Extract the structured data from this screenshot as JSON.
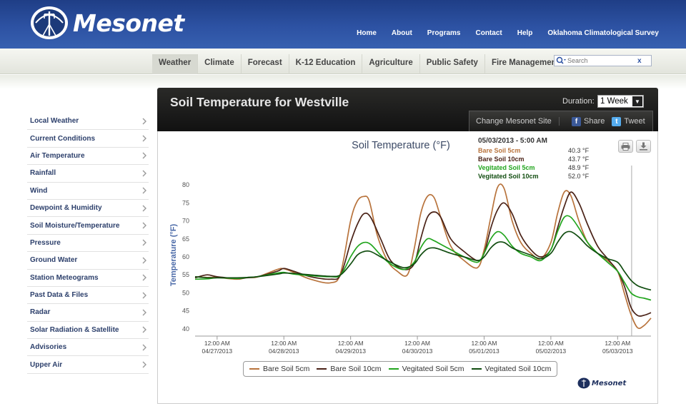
{
  "header": {
    "logo_text": "Mesonet",
    "nav": [
      "Home",
      "About",
      "Programs",
      "Contact",
      "Help",
      "Oklahoma Climatological Survey"
    ]
  },
  "subnav": {
    "items": [
      "Weather",
      "Climate",
      "Forecast",
      "K-12 Education",
      "Agriculture",
      "Public Safety",
      "Fire Management"
    ],
    "active": "Weather",
    "search_placeholder": "Search",
    "clear_label": "x"
  },
  "sidebar": {
    "items": [
      "Local Weather",
      "Current Conditions",
      "Air Temperature",
      "Rainfall",
      "Wind",
      "Dewpoint & Humidity",
      "Soil Moisture/Temperature",
      "Pressure",
      "Ground Water",
      "Station Meteograms",
      "Past Data & Files",
      "Radar",
      "Solar Radiation & Satellite",
      "Advisories",
      "Upper Air"
    ]
  },
  "panel": {
    "title": "Soil Temperature for Westville",
    "duration_label": "Duration:",
    "duration_value": "1 Week",
    "change_station": "Change Mesonet Site",
    "share": "Share",
    "tweet": "Tweet"
  },
  "colors": {
    "bare5": "#b8733c",
    "bare10": "#4a2217",
    "veg5": "#22a51e",
    "veg10": "#114d10"
  },
  "tooltip": {
    "date": "05/03/2013 - 5:00 AM",
    "rows": [
      {
        "name": "Bare Soil 5cm",
        "value": "40.3 °F"
      },
      {
        "name": "Bare Soil 10cm",
        "value": "43.7 °F"
      },
      {
        "name": "Vegitated Soil 5cm",
        "value": "48.9 °F"
      },
      {
        "name": "Vegitated Soil 10cm",
        "value": "52.0 °F"
      }
    ]
  },
  "brand_text": "Mesonet",
  "chart_data": {
    "type": "line",
    "title": "Soil Temperature (°F)",
    "ylabel": "Temperature (°F)",
    "xlabel": "",
    "ylim": [
      38,
      83
    ],
    "yticks": [
      40,
      45,
      50,
      55,
      60,
      65,
      70,
      75,
      80
    ],
    "xlim": [
      -0.33,
      6.5
    ],
    "xticks": [
      {
        "x": 0,
        "time": "12:00 AM",
        "date": "04/27/2013"
      },
      {
        "x": 1,
        "time": "12:00 AM",
        "date": "04/28/2013"
      },
      {
        "x": 2,
        "time": "12:00 AM",
        "date": "04/29/2013"
      },
      {
        "x": 3,
        "time": "12:00 AM",
        "date": "04/30/2013"
      },
      {
        "x": 4,
        "time": "12:00 AM",
        "date": "05/01/2013"
      },
      {
        "x": 5,
        "time": "12:00 AM",
        "date": "05/02/2013"
      },
      {
        "x": 6,
        "time": "12:00 AM",
        "date": "05/03/2013"
      }
    ],
    "crosshair_x": 6.21,
    "legend": "bottom",
    "series": [
      {
        "name": "Bare Soil 5cm",
        "key": "bare5",
        "points": [
          [
            -0.33,
            54.5
          ],
          [
            -0.15,
            54.3
          ],
          [
            0,
            54.3
          ],
          [
            0.3,
            53.8
          ],
          [
            0.45,
            54.3
          ],
          [
            0.6,
            54.4
          ],
          [
            0.9,
            56.5
          ],
          [
            1.0,
            56.7
          ],
          [
            1.15,
            55.7
          ],
          [
            1.4,
            53.8
          ],
          [
            1.7,
            52.8
          ],
          [
            1.85,
            55.5
          ],
          [
            2.0,
            70
          ],
          [
            2.1,
            75.5
          ],
          [
            2.2,
            76.8
          ],
          [
            2.28,
            75.5
          ],
          [
            2.4,
            66
          ],
          [
            2.55,
            59
          ],
          [
            2.7,
            56
          ],
          [
            2.85,
            55
          ],
          [
            2.95,
            62
          ],
          [
            3.05,
            72
          ],
          [
            3.15,
            76.8
          ],
          [
            3.25,
            76.5
          ],
          [
            3.35,
            71
          ],
          [
            3.5,
            63
          ],
          [
            3.7,
            59
          ],
          [
            3.9,
            57
          ],
          [
            4.0,
            62
          ],
          [
            4.1,
            71
          ],
          [
            4.2,
            79.3
          ],
          [
            4.3,
            79
          ],
          [
            4.42,
            70
          ],
          [
            4.55,
            64
          ],
          [
            4.7,
            61
          ],
          [
            4.85,
            59.5
          ],
          [
            5.0,
            64
          ],
          [
            5.1,
            72
          ],
          [
            5.2,
            78
          ],
          [
            5.3,
            77
          ],
          [
            5.42,
            70
          ],
          [
            5.55,
            64
          ],
          [
            5.7,
            61
          ],
          [
            5.85,
            59
          ],
          [
            6.0,
            56
          ],
          [
            6.1,
            50
          ],
          [
            6.2,
            44
          ],
          [
            6.3,
            40.3
          ],
          [
            6.4,
            41
          ],
          [
            6.5,
            43
          ]
        ]
      },
      {
        "name": "Bare Soil 10cm",
        "key": "bare10",
        "points": [
          [
            -0.33,
            54.2
          ],
          [
            -0.15,
            55
          ],
          [
            0,
            54.5
          ],
          [
            0.3,
            54
          ],
          [
            0.45,
            54.2
          ],
          [
            0.6,
            54.5
          ],
          [
            0.9,
            56
          ],
          [
            1.0,
            56.8
          ],
          [
            1.15,
            56
          ],
          [
            1.4,
            54.5
          ],
          [
            1.7,
            53.8
          ],
          [
            1.85,
            55
          ],
          [
            2.0,
            64
          ],
          [
            2.1,
            69
          ],
          [
            2.2,
            72
          ],
          [
            2.3,
            71
          ],
          [
            2.45,
            65
          ],
          [
            2.6,
            59
          ],
          [
            2.8,
            56.5
          ],
          [
            2.95,
            58
          ],
          [
            3.05,
            65
          ],
          [
            3.15,
            71
          ],
          [
            3.25,
            72.5
          ],
          [
            3.35,
            71
          ],
          [
            3.5,
            65
          ],
          [
            3.7,
            61.5
          ],
          [
            3.9,
            59
          ],
          [
            4.0,
            61
          ],
          [
            4.1,
            68
          ],
          [
            4.2,
            73
          ],
          [
            4.3,
            75
          ],
          [
            4.42,
            72
          ],
          [
            4.55,
            66
          ],
          [
            4.7,
            62
          ],
          [
            4.85,
            60
          ],
          [
            5.0,
            62
          ],
          [
            5.1,
            68
          ],
          [
            5.2,
            74
          ],
          [
            5.3,
            78
          ],
          [
            5.42,
            75
          ],
          [
            5.55,
            69
          ],
          [
            5.7,
            63
          ],
          [
            5.85,
            59.5
          ],
          [
            6.0,
            56
          ],
          [
            6.1,
            52
          ],
          [
            6.2,
            46
          ],
          [
            6.3,
            43.7
          ],
          [
            6.4,
            43.8
          ],
          [
            6.5,
            44.5
          ]
        ]
      },
      {
        "name": "Vegitated Soil 5cm",
        "key": "veg5",
        "points": [
          [
            -0.33,
            53.8
          ],
          [
            -0.15,
            53.9
          ],
          [
            0,
            54.2
          ],
          [
            0.3,
            54
          ],
          [
            0.45,
            54.3
          ],
          [
            0.6,
            54.5
          ],
          [
            0.9,
            55.5
          ],
          [
            1.0,
            55.7
          ],
          [
            1.15,
            55.2
          ],
          [
            1.4,
            54.8
          ],
          [
            1.7,
            54.5
          ],
          [
            1.85,
            55
          ],
          [
            2.0,
            60
          ],
          [
            2.1,
            62.8
          ],
          [
            2.2,
            64
          ],
          [
            2.3,
            63.5
          ],
          [
            2.45,
            60.5
          ],
          [
            2.6,
            58
          ],
          [
            2.8,
            56.5
          ],
          [
            2.95,
            58.5
          ],
          [
            3.05,
            62.5
          ],
          [
            3.15,
            65
          ],
          [
            3.25,
            64.5
          ],
          [
            3.35,
            63.5
          ],
          [
            3.5,
            62
          ],
          [
            3.7,
            60
          ],
          [
            3.9,
            58.5
          ],
          [
            4.0,
            61
          ],
          [
            4.1,
            65
          ],
          [
            4.2,
            67
          ],
          [
            4.3,
            66
          ],
          [
            4.42,
            63
          ],
          [
            4.55,
            61
          ],
          [
            4.7,
            60
          ],
          [
            4.85,
            59
          ],
          [
            5.0,
            62
          ],
          [
            5.1,
            67
          ],
          [
            5.2,
            71
          ],
          [
            5.3,
            71
          ],
          [
            5.42,
            68
          ],
          [
            5.55,
            64
          ],
          [
            5.7,
            61
          ],
          [
            5.85,
            58.5
          ],
          [
            6.0,
            56
          ],
          [
            6.1,
            53
          ],
          [
            6.2,
            50
          ],
          [
            6.3,
            48.9
          ],
          [
            6.4,
            48.5
          ],
          [
            6.5,
            48
          ]
        ]
      },
      {
        "name": "Vegitated Soil 10cm",
        "key": "veg10",
        "points": [
          [
            -0.33,
            54.5
          ],
          [
            -0.15,
            54.2
          ],
          [
            0,
            54.2
          ],
          [
            0.3,
            54.2
          ],
          [
            0.45,
            54.3
          ],
          [
            0.6,
            54.5
          ],
          [
            0.9,
            55.2
          ],
          [
            1.0,
            55.5
          ],
          [
            1.15,
            55.4
          ],
          [
            1.4,
            55
          ],
          [
            1.7,
            54.6
          ],
          [
            1.85,
            55
          ],
          [
            2.0,
            58
          ],
          [
            2.1,
            60.5
          ],
          [
            2.2,
            61.5
          ],
          [
            2.3,
            61.5
          ],
          [
            2.45,
            60
          ],
          [
            2.6,
            58.5
          ],
          [
            2.8,
            57
          ],
          [
            2.95,
            58
          ],
          [
            3.05,
            60.5
          ],
          [
            3.15,
            62.2
          ],
          [
            3.25,
            62.5
          ],
          [
            3.35,
            62
          ],
          [
            3.5,
            61
          ],
          [
            3.7,
            60
          ],
          [
            3.9,
            59
          ],
          [
            4.0,
            60
          ],
          [
            4.1,
            62.5
          ],
          [
            4.2,
            64
          ],
          [
            4.3,
            64
          ],
          [
            4.42,
            62.5
          ],
          [
            4.55,
            61.5
          ],
          [
            4.7,
            60.5
          ],
          [
            4.85,
            59.5
          ],
          [
            5.0,
            61
          ],
          [
            5.1,
            64
          ],
          [
            5.2,
            66.5
          ],
          [
            5.3,
            67
          ],
          [
            5.42,
            65.5
          ],
          [
            5.55,
            63
          ],
          [
            5.7,
            61
          ],
          [
            5.85,
            59.5
          ],
          [
            6.0,
            58.5
          ],
          [
            6.1,
            56
          ],
          [
            6.2,
            53.5
          ],
          [
            6.3,
            52
          ],
          [
            6.4,
            51.3
          ],
          [
            6.5,
            50.8
          ]
        ]
      }
    ]
  }
}
